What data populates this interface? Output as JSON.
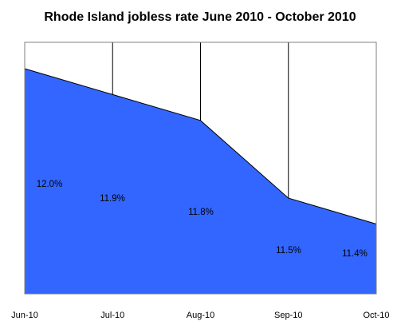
{
  "chart_data": {
    "type": "area",
    "title": "Rhode Island jobless rate June 2010 - October 2010",
    "xlabel": "",
    "ylabel": "",
    "categories": [
      "Jun-10",
      "Jul-10",
      "Aug-10",
      "Sep-10",
      "Oct-10"
    ],
    "series": [
      {
        "values": [
          12.0,
          11.9,
          11.8,
          11.5,
          11.4
        ],
        "data_labels": [
          "12.0%",
          "11.9%",
          "11.8%",
          "11.5%",
          "11.4%"
        ]
      }
    ],
    "ylim": [
      11.13,
      12.0
    ],
    "grid": "vertical",
    "legend": "none",
    "colors": {
      "area_fill": "#3366FF",
      "area_stroke": "#000000",
      "gridline": "#000000",
      "plot_border": "#808080",
      "background": "#FFFFFF"
    }
  }
}
